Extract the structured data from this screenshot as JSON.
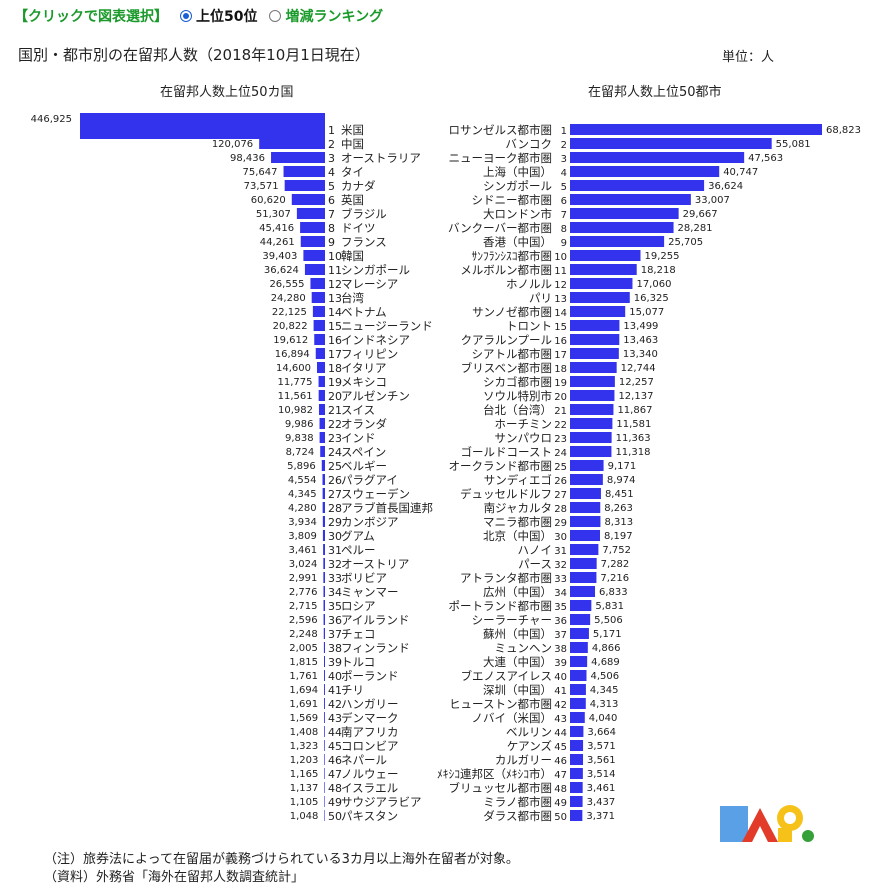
{
  "toolbar": {
    "heading": "【クリックで図表選択】",
    "options": [
      {
        "label": "上位50位",
        "selected": true
      },
      {
        "label": "増減ランキング",
        "selected": false
      }
    ]
  },
  "title": "国別・都市別の在留邦人数（2018年10月1日現在）",
  "unit": "単位：人",
  "notes": [
    "（注）旅券法によって在留届が義務づけられている3カ月以上海外在留者が対象。",
    "（資料）外務省「海外在留邦人数調査統計」"
  ],
  "colors": {
    "bar": "#3333ee",
    "text": "#222222",
    "accent": "#1a9a2a"
  },
  "chart_data": [
    {
      "type": "bar",
      "orientation": "horizontal",
      "title": "在留邦人数上位50カ国",
      "categories": [
        "米国",
        "中国",
        "オーストラリア",
        "タイ",
        "カナダ",
        "英国",
        "ブラジル",
        "ドイツ",
        "フランス",
        "韓国",
        "シンガポール",
        "マレーシア",
        "台湾",
        "ベトナム",
        "ニュージーランド",
        "インドネシア",
        "フィリピン",
        "イタリア",
        "メキシコ",
        "アルゼンチン",
        "スイス",
        "オランダ",
        "インド",
        "スペイン",
        "ベルギー",
        "パラグアイ",
        "スウェーデン",
        "アラブ首長国連邦",
        "カンボジア",
        "グアム",
        "ペルー",
        "オーストリア",
        "ボリビア",
        "ミャンマー",
        "ロシア",
        "アイルランド",
        "チェコ",
        "フィンランド",
        "トルコ",
        "ポーランド",
        "チリ",
        "ハンガリー",
        "デンマーク",
        "南アフリカ",
        "コロンビア",
        "ネパール",
        "ノルウェー",
        "イスラエル",
        "サウジアラビア",
        "パキスタン"
      ],
      "values": [
        446925,
        120076,
        98436,
        75647,
        73571,
        60620,
        51307,
        45416,
        44261,
        39403,
        36624,
        26555,
        24280,
        22125,
        20822,
        19612,
        16894,
        14600,
        11775,
        11561,
        10982,
        9986,
        9838,
        8724,
        5896,
        4554,
        4345,
        4280,
        3934,
        3809,
        3461,
        3024,
        2991,
        2776,
        2715,
        2596,
        2248,
        2005,
        1815,
        1761,
        1694,
        1691,
        1569,
        1408,
        1323,
        1203,
        1165,
        1137,
        1105,
        1048
      ]
    },
    {
      "type": "bar",
      "orientation": "horizontal",
      "title": "在留邦人数上位50都市",
      "categories": [
        "ロサンゼルス都市圏",
        "バンコク",
        "ニューヨーク都市圏",
        "上海（中国）",
        "シンガポール",
        "シドニー都市圏",
        "大ロンドン市",
        "バンクーバー都市圏",
        "香港（中国）",
        "ｻﾝﾌﾗﾝｼｽｺ都市圏",
        "メルボルン都市圏",
        "ホノルル",
        "パリ",
        "サンノゼ都市圏",
        "トロント",
        "クアラルンプール",
        "シアトル都市圏",
        "ブリスベン都市圏",
        "シカゴ都市圏",
        "ソウル特別市",
        "台北（台湾）",
        "ホーチミン",
        "サンパウロ",
        "ゴールドコースト",
        "オークランド都市圏",
        "サンディエゴ",
        "デュッセルドルフ",
        "南ジャカルタ",
        "マニラ都市圏",
        "北京（中国）",
        "ハノイ",
        "パース",
        "アトランタ都市圏",
        "広州（中国）",
        "ポートランド都市圏",
        "シーラーチャー",
        "蘇州（中国）",
        "ミュンヘン",
        "大連（中国）",
        "ブエノスアイレス",
        "深圳（中国）",
        "ヒューストン都市圏",
        "ノバイ（米国）",
        "ベルリン",
        "ケアンズ",
        "カルガリー",
        "ﾒｷｼｺ連邦区（ﾒｷｼｺ市）",
        "ブリュッセル都市圏",
        "ミラノ都市圏",
        "ダラス都市圏"
      ],
      "values": [
        68823,
        55081,
        47563,
        40747,
        36624,
        33007,
        29667,
        28281,
        25705,
        19255,
        18218,
        17060,
        16325,
        15077,
        13499,
        13463,
        13340,
        12744,
        12257,
        12137,
        11867,
        11581,
        11363,
        11318,
        9171,
        8974,
        8451,
        8263,
        8313,
        8197,
        7752,
        7282,
        7216,
        6833,
        5831,
        5506,
        5171,
        4866,
        4689,
        4506,
        4345,
        4313,
        4040,
        3664,
        3571,
        3561,
        3514,
        3461,
        3437,
        3371
      ]
    }
  ]
}
